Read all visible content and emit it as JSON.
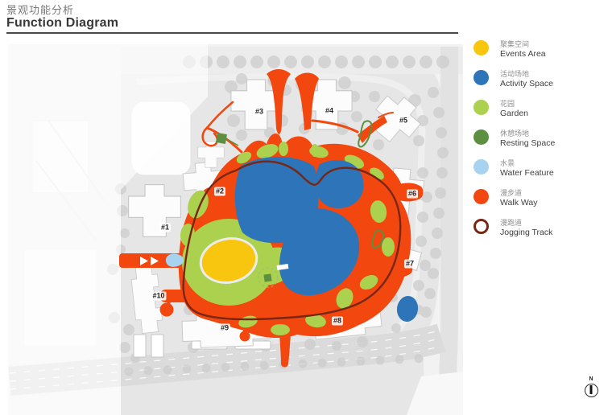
{
  "header": {
    "title_zh": "景观功能分析",
    "title_en": "Function Diagram"
  },
  "legend": {
    "items": [
      {
        "zh": "聚集空间",
        "en": "Events Area",
        "color": "#F8C60E",
        "type": "fill"
      },
      {
        "zh": "活动场地",
        "en": "Activity Space",
        "color": "#2E74B8",
        "type": "fill"
      },
      {
        "zh": "花园",
        "en": "Garden",
        "color": "#ABD14E",
        "type": "fill"
      },
      {
        "zh": "休憩场地",
        "en": "Resting Space",
        "color": "#5C8F3F",
        "type": "fill"
      },
      {
        "zh": "水景",
        "en": "Water Feature",
        "color": "#A7D3F1",
        "type": "fill"
      },
      {
        "zh": "漫步道",
        "en": "Walk Way",
        "color": "#F2470F",
        "type": "fill"
      },
      {
        "zh": "漫跑道",
        "en": "Jogging Track",
        "color": "#772716",
        "type": "ring"
      }
    ]
  },
  "plan": {
    "buildings": [
      {
        "label": "#1"
      },
      {
        "label": "#2"
      },
      {
        "label": "#3"
      },
      {
        "label": "#4"
      },
      {
        "label": "#5"
      },
      {
        "label": "#6"
      },
      {
        "label": "#7"
      },
      {
        "label": "#8"
      },
      {
        "label": "#9"
      },
      {
        "label": "#10"
      }
    ]
  },
  "compass": {
    "label": "N"
  },
  "colors": {
    "walkway": "#F2470F",
    "activity": "#2E74B8",
    "garden": "#ABD14E",
    "resting": "#5C8F3F",
    "water": "#A7D3F1",
    "events": "#F8C60E",
    "jogging": "#772716",
    "site": "#E6E6E6",
    "tree": "#CDCDCD"
  }
}
